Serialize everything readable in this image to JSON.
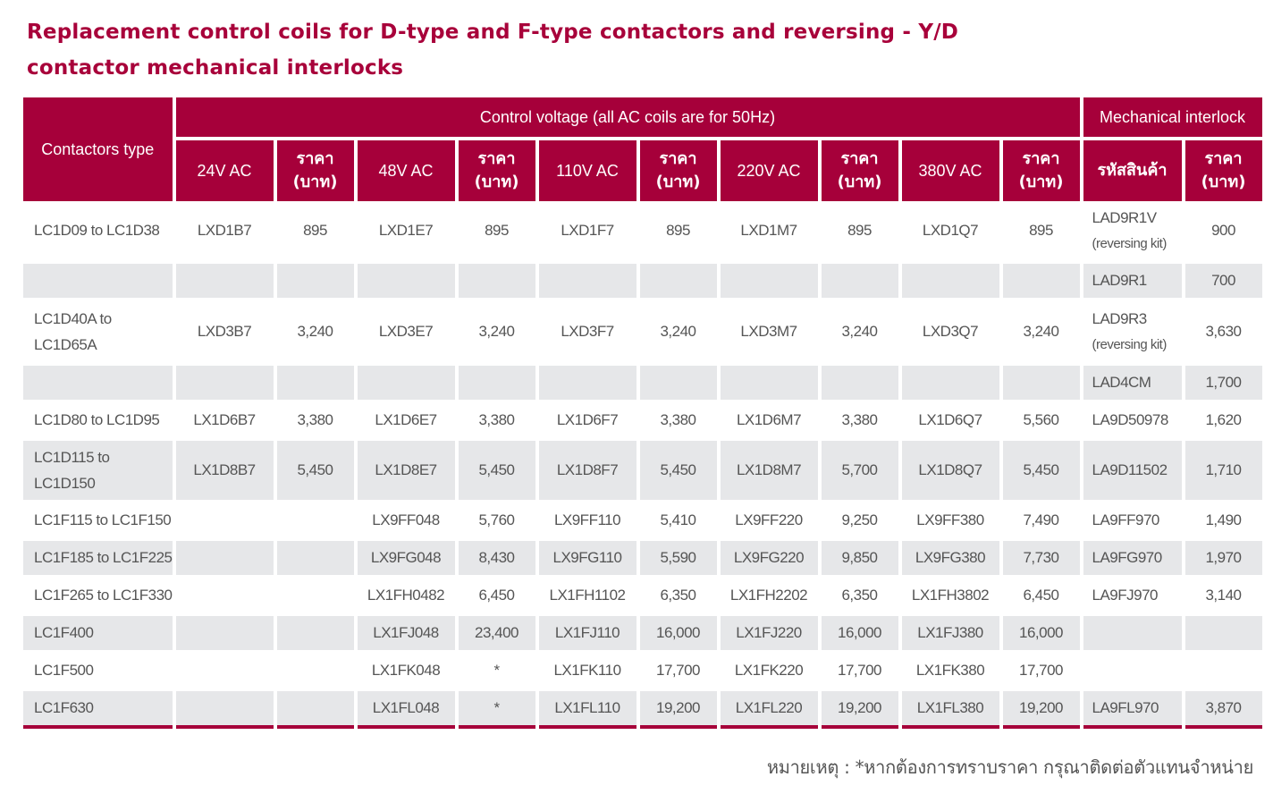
{
  "title": {
    "line1": "Replacement control coils for D-type and F-type contactors and reversing - Y/D",
    "line2": "contactor mechanical interlocks"
  },
  "header": {
    "contactors_type": "Contactors type",
    "control_voltage": "Control voltage (all AC coils are for 50Hz)",
    "mechanical_interlock": "Mechanical interlock",
    "price_line1": "ราคา",
    "price_line2": "(บาท)",
    "product_code": "รหัสสินค้า",
    "voltages": [
      "24V AC",
      "48V AC",
      "110V AC",
      "220V AC",
      "380V AC"
    ]
  },
  "rows": [
    {
      "type": [
        "LC1D09 to LC1D38"
      ],
      "cells": [
        "LXD1B7",
        "895",
        "LXD1E7",
        "895",
        "LXD1F7",
        "895",
        "LXD1M7",
        "895",
        "LXD1Q7",
        "895"
      ],
      "interlock": "LAD9R1V",
      "interlock_note": "(reversing kit)",
      "interlock_price": "900"
    },
    {
      "type": [
        ""
      ],
      "cells": [
        "",
        "",
        "",
        "",
        "",
        "",
        "",
        "",
        "",
        ""
      ],
      "interlock": "LAD9R1",
      "interlock_note": "",
      "interlock_price": "700"
    },
    {
      "type": [
        "LC1D40A to",
        "LC1D65A"
      ],
      "cells": [
        "LXD3B7",
        "3,240",
        "LXD3E7",
        "3,240",
        "LXD3F7",
        "3,240",
        "LXD3M7",
        "3,240",
        "LXD3Q7",
        "3,240"
      ],
      "interlock": "LAD9R3",
      "interlock_note": "(reversing kit)",
      "interlock_price": "3,630"
    },
    {
      "type": [
        ""
      ],
      "cells": [
        "",
        "",
        "",
        "",
        "",
        "",
        "",
        "",
        "",
        ""
      ],
      "interlock": "LAD4CM",
      "interlock_note": "",
      "interlock_price": "1,700"
    },
    {
      "type": [
        "LC1D80 to LC1D95"
      ],
      "cells": [
        "LX1D6B7",
        "3,380",
        "LX1D6E7",
        "3,380",
        "LX1D6F7",
        "3,380",
        "LX1D6M7",
        "3,380",
        "LX1D6Q7",
        "5,560"
      ],
      "interlock": "LA9D50978",
      "interlock_note": "",
      "interlock_price": "1,620"
    },
    {
      "type": [
        "LC1D115 to",
        "LC1D150"
      ],
      "cells": [
        "LX1D8B7",
        "5,450",
        "LX1D8E7",
        "5,450",
        "LX1D8F7",
        "5,450",
        "LX1D8M7",
        "5,700",
        "LX1D8Q7",
        "5,450"
      ],
      "interlock": "LA9D11502",
      "interlock_note": "",
      "interlock_price": "1,710"
    },
    {
      "type": [
        "LC1F115 to LC1F150"
      ],
      "cells": [
        "",
        "",
        "LX9FF048",
        "5,760",
        "LX9FF110",
        "5,410",
        "LX9FF220",
        "9,250",
        "LX9FF380",
        "7,490"
      ],
      "interlock": "LA9FF970",
      "interlock_note": "",
      "interlock_price": "1,490"
    },
    {
      "type": [
        "LC1F185 to LC1F225"
      ],
      "cells": [
        "",
        "",
        "LX9FG048",
        "8,430",
        "LX9FG110",
        "5,590",
        "LX9FG220",
        "9,850",
        "LX9FG380",
        "7,730"
      ],
      "interlock": "LA9FG970",
      "interlock_note": "",
      "interlock_price": "1,970"
    },
    {
      "type": [
        "LC1F265 to LC1F330"
      ],
      "cells": [
        "",
        "",
        "LX1FH0482",
        "6,450",
        "LX1FH1102",
        "6,350",
        "LX1FH2202",
        "6,350",
        "LX1FH3802",
        "6,450"
      ],
      "interlock": "LA9FJ970",
      "interlock_note": "",
      "interlock_price": "3,140"
    },
    {
      "type": [
        "LC1F400"
      ],
      "cells": [
        "",
        "",
        "LX1FJ048",
        "23,400",
        "LX1FJ110",
        "16,000",
        "LX1FJ220",
        "16,000",
        "LX1FJ380",
        "16,000"
      ],
      "interlock": "",
      "interlock_note": "",
      "interlock_price": ""
    },
    {
      "type": [
        "LC1F500"
      ],
      "cells": [
        "",
        "",
        "LX1FK048",
        "*",
        "LX1FK110",
        "17,700",
        "LX1FK220",
        "17,700",
        "LX1FK380",
        "17,700"
      ],
      "interlock": "",
      "interlock_note": "",
      "interlock_price": ""
    },
    {
      "type": [
        "LC1F630"
      ],
      "cells": [
        "",
        "",
        "LX1FL048",
        "*",
        "LX1FL110",
        "19,200",
        "LX1FL220",
        "19,200",
        "LX1FL380",
        "19,200"
      ],
      "interlock": "LA9FL970",
      "interlock_note": "",
      "interlock_price": "3,870"
    }
  ],
  "note": "หมายเหตุ : *หากต้องการทราบราคา กรุณาติดต่อตัวแทนจำหน่าย",
  "colors": {
    "brand": "#a6003a",
    "stripe": "#e6e7e9",
    "text": "#555555"
  }
}
